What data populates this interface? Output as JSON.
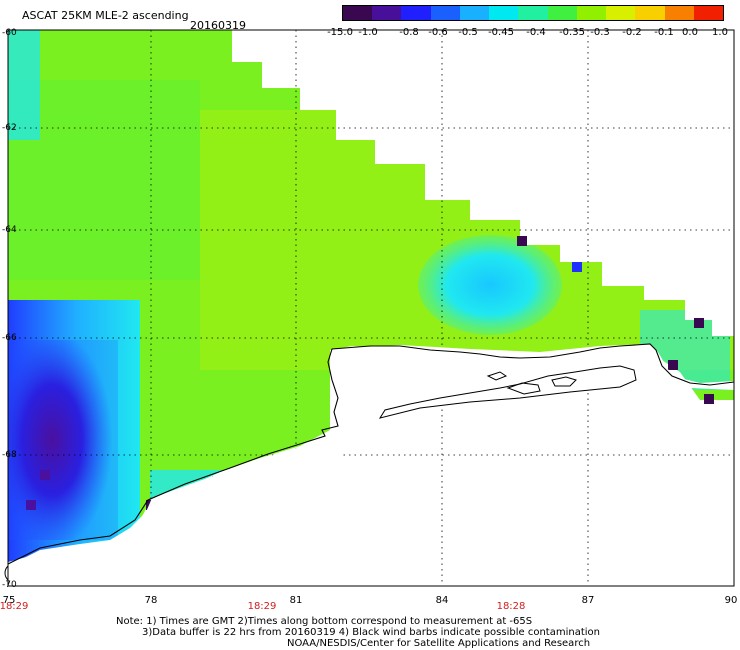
{
  "header": {
    "title": "ASCAT 25KM MLE-2 ascending",
    "date": "20160319"
  },
  "colorbar": {
    "labels": [
      "-15.0",
      "-1.0",
      "-0.8",
      "-0.6",
      "-0.5",
      "-0.45",
      "-0.4",
      "-0.35",
      "-0.3",
      "-0.2",
      "-0.1",
      "0.0",
      "1.0"
    ],
    "colors": [
      "#3a0850",
      "#48109a",
      "#2020ff",
      "#1a60ff",
      "#18b0ff",
      "#00e8f0",
      "#20f0a0",
      "#40f040",
      "#90f000",
      "#d8f000",
      "#f8d000",
      "#f88000",
      "#f02000"
    ]
  },
  "map": {
    "lon_labels": [
      "75",
      "78",
      "81",
      "84",
      "87",
      "90"
    ],
    "lat_labels": [
      "-60",
      "-62",
      "-64",
      "-66",
      "-68",
      "-70"
    ],
    "time_labels": [
      "18:29",
      "18:29",
      "18:28"
    ],
    "colors": {
      "cyan": "#20e8f0",
      "green": "#7af020",
      "lime": "#a8f010",
      "purple": "#4a10a0",
      "blue": "#2030ff",
      "dark": "#380850"
    }
  },
  "notes": {
    "line1": "Note: 1) Times are GMT 2)Times along bottom correspond to measurement at -65S",
    "line2": "3)Data buffer is 22 hrs from 20160319 4) Black wind barbs indicate possible contamination",
    "line3": "NOAA/NESDIS/Center for Satellite Applications and Research"
  }
}
